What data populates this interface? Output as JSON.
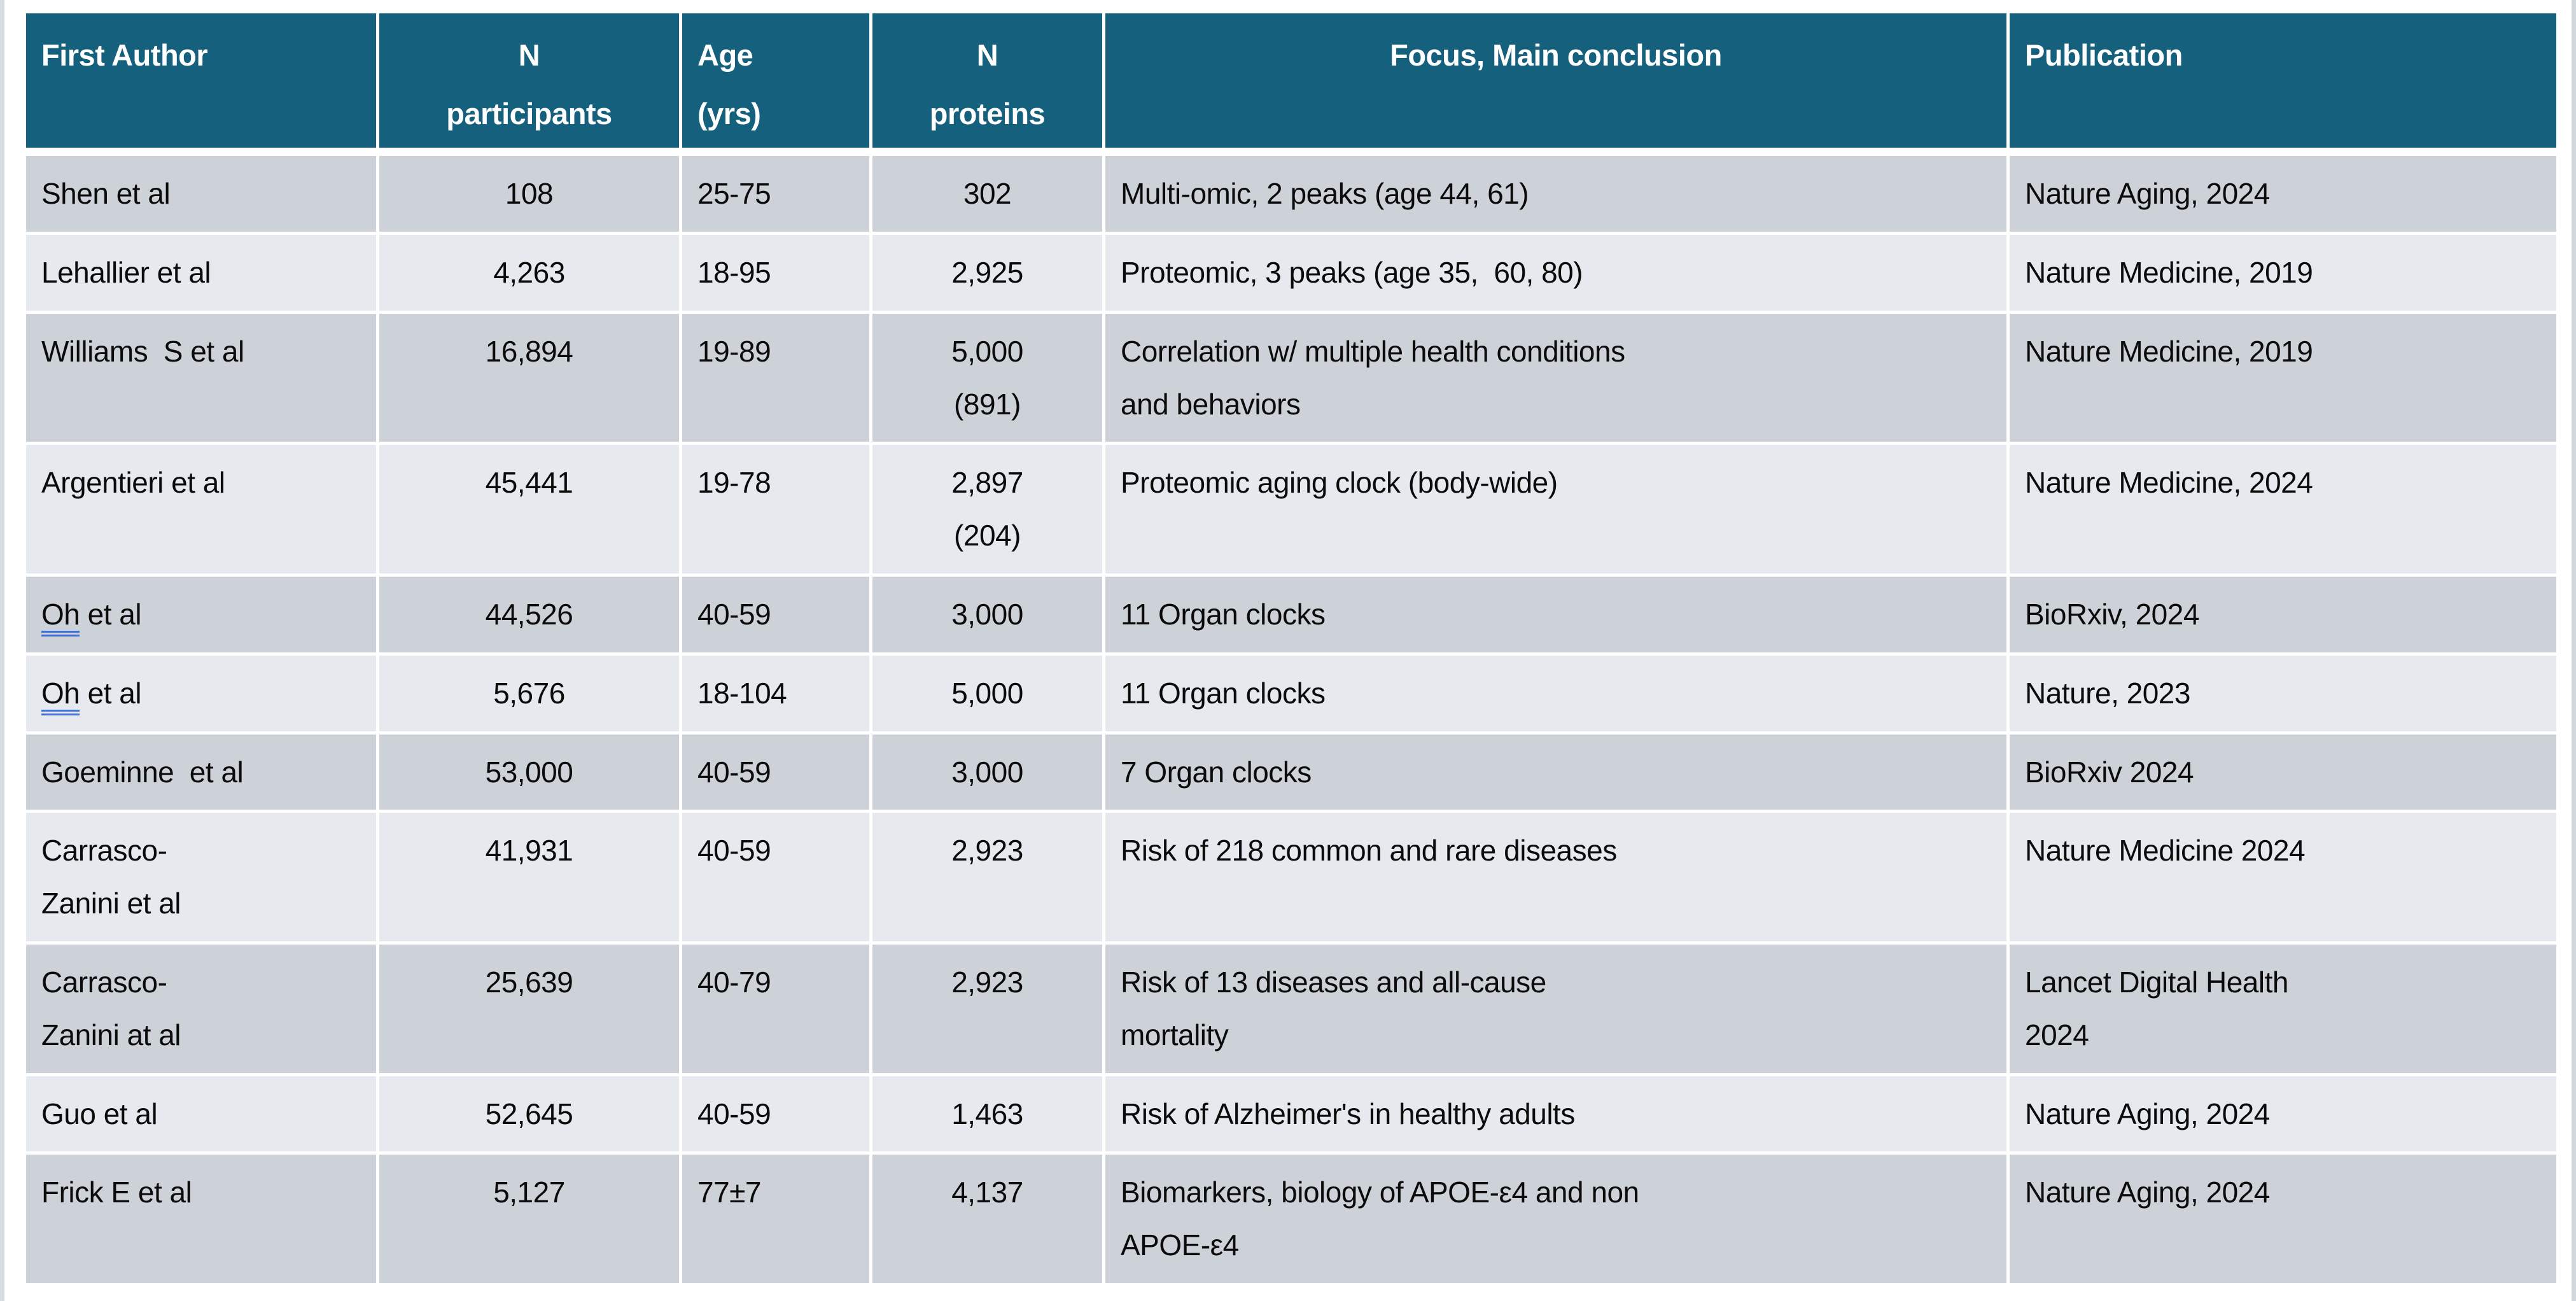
{
  "theme": {
    "header_bg": "#15607D",
    "row_dark": "#CDD1D8",
    "row_light": "#E6E9EE",
    "grammar_underline_blue": "#3F6FD7",
    "text_color": "#0b0b0b"
  },
  "table": {
    "columns": [
      {
        "label": "First Author",
        "align": "left"
      },
      {
        "label": "N\nparticipants",
        "align": "center"
      },
      {
        "label": "Age\n(yrs)",
        "align": "left"
      },
      {
        "label": "N\nproteins",
        "align": "center"
      },
      {
        "label": "Focus, Main conclusion",
        "align": "center"
      },
      {
        "label": "Publication",
        "align": "left"
      }
    ],
    "rows": [
      {
        "author": "Shen et al",
        "participants": "108",
        "age": "25-75",
        "proteins": "302",
        "focus": "Multi-omic, 2 peaks (age 44, 61)",
        "publication": "Nature Aging, 2024"
      },
      {
        "author": "Lehallier et al",
        "participants": "4,263",
        "age": "18-95",
        "proteins": "2,925",
        "focus": "Proteomic, 3 peaks (age 35,  60, 80)",
        "publication": "Nature Medicine, 2019"
      },
      {
        "author": "Williams  S et al",
        "participants": "16,894",
        "age": "19-89",
        "proteins": "5,000\n(891)",
        "focus": "Correlation w/ multiple health conditions\nand behaviors",
        "publication": "Nature Medicine, 2019"
      },
      {
        "author": "Argentieri et al",
        "participants": "45,441",
        "age": "19-78",
        "proteins": "2,897\n(204)",
        "focus": "Proteomic aging clock (body-wide)",
        "publication": "Nature Medicine, 2024"
      },
      {
        "author": "Oh et al",
        "author_underline": "Oh",
        "participants": "44,526",
        "age": "40-59",
        "proteins": "3,000",
        "focus": "11 Organ clocks",
        "publication": "BioRxiv, 2024"
      },
      {
        "author": "Oh et al",
        "author_underline": "Oh",
        "participants": "5,676",
        "age": "18-104",
        "proteins": "5,000",
        "focus": "11 Organ clocks",
        "publication": "Nature, 2023"
      },
      {
        "author": "Goeminne  et al",
        "participants": "53,000",
        "age": "40-59",
        "proteins": "3,000",
        "focus": "7 Organ clocks",
        "publication": "BioRxiv 2024"
      },
      {
        "author": "Carrasco-\nZanini et al",
        "participants": "41,931",
        "age": "40-59",
        "proteins": "2,923",
        "focus": "Risk of 218 common and rare diseases",
        "publication": "Nature Medicine 2024"
      },
      {
        "author": "Carrasco-\nZanini at al",
        "participants": "25,639",
        "age": "40-79",
        "proteins": "2,923",
        "focus": "Risk of 13 diseases and all-cause\nmortality",
        "publication": "Lancet Digital Health\n2024"
      },
      {
        "author": "Guo et al",
        "participants": "52,645",
        "age": "40-59",
        "proteins": "1,463",
        "focus": "Risk of Alzheimer's in healthy adults",
        "publication": "Nature Aging, 2024"
      },
      {
        "author": "Frick E et al",
        "participants": "5,127",
        "age": "77±7",
        "proteins": "4,137",
        "focus": "Biomarkers, biology of APOE-ε4 and non\nAPOE-ε4",
        "publication": "Nature Aging, 2024"
      }
    ]
  }
}
